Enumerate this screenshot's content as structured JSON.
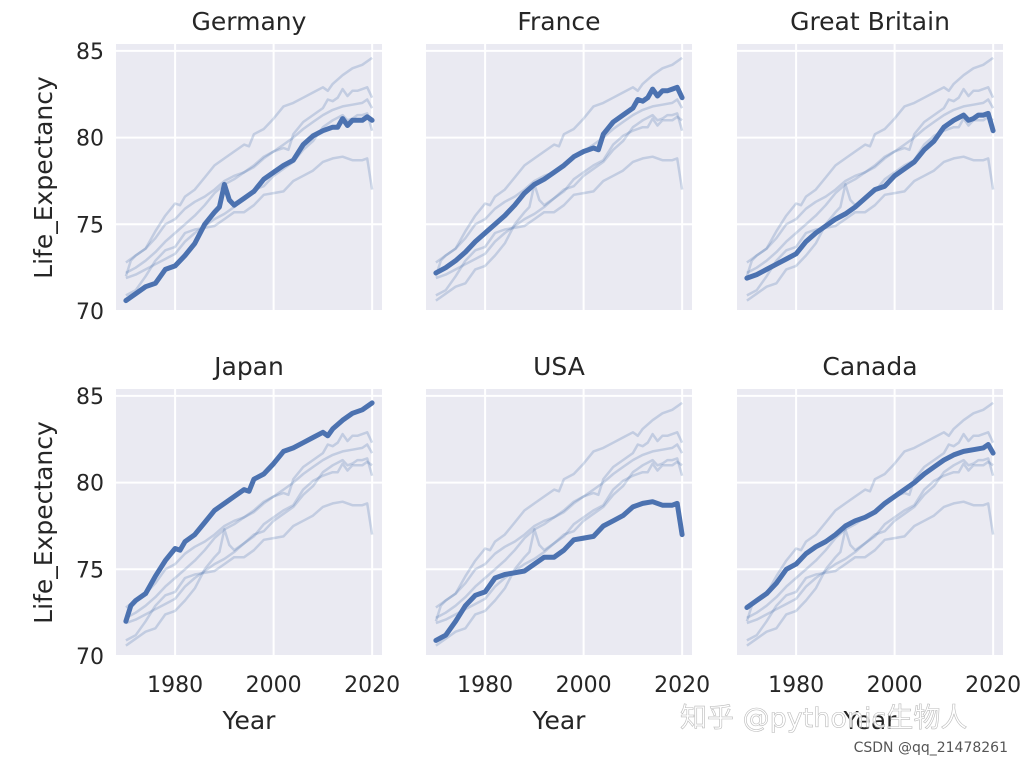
{
  "chart_data": {
    "type": "line",
    "xlabel": "Year",
    "ylabel": "Life_Expectancy",
    "xlim": [
      1968,
      2022
    ],
    "ylim": [
      70,
      85.4
    ],
    "xticks": [
      "1980",
      "2000",
      "2020"
    ],
    "yticks": [
      "70",
      "75",
      "80",
      "85"
    ],
    "grid": true,
    "colors": {
      "highlight": "#4c72b0",
      "background_series": "#4c72b0",
      "panel_bg": "#eaeaf2",
      "grid": "#ffffff"
    },
    "series": [
      {
        "name": "Germany",
        "points": [
          [
            1970,
            70.6
          ],
          [
            1972,
            71.0
          ],
          [
            1974,
            71.4
          ],
          [
            1976,
            71.6
          ],
          [
            1978,
            72.4
          ],
          [
            1980,
            72.6
          ],
          [
            1982,
            73.2
          ],
          [
            1984,
            73.9
          ],
          [
            1986,
            75.0
          ],
          [
            1988,
            75.7
          ],
          [
            1989,
            76.0
          ],
          [
            1990,
            77.3
          ],
          [
            1991,
            76.4
          ],
          [
            1992,
            76.1
          ],
          [
            1994,
            76.5
          ],
          [
            1996,
            76.9
          ],
          [
            1998,
            77.6
          ],
          [
            2000,
            78.0
          ],
          [
            2002,
            78.4
          ],
          [
            2004,
            78.7
          ],
          [
            2006,
            79.6
          ],
          [
            2008,
            80.1
          ],
          [
            2010,
            80.4
          ],
          [
            2012,
            80.6
          ],
          [
            2013,
            80.6
          ],
          [
            2014,
            81.1
          ],
          [
            2015,
            80.7
          ],
          [
            2016,
            81.0
          ],
          [
            2017,
            81.0
          ],
          [
            2018,
            81.0
          ],
          [
            2019,
            81.2
          ],
          [
            2020,
            81.0
          ]
        ]
      },
      {
        "name": "France",
        "points": [
          [
            1970,
            72.2
          ],
          [
            1972,
            72.5
          ],
          [
            1974,
            72.9
          ],
          [
            1976,
            73.4
          ],
          [
            1978,
            74.0
          ],
          [
            1980,
            74.5
          ],
          [
            1982,
            75.0
          ],
          [
            1984,
            75.5
          ],
          [
            1986,
            76.1
          ],
          [
            1988,
            76.8
          ],
          [
            1990,
            77.3
          ],
          [
            1992,
            77.6
          ],
          [
            1994,
            78.0
          ],
          [
            1996,
            78.4
          ],
          [
            1998,
            78.9
          ],
          [
            2000,
            79.2
          ],
          [
            2002,
            79.4
          ],
          [
            2003,
            79.3
          ],
          [
            2004,
            80.2
          ],
          [
            2006,
            80.9
          ],
          [
            2008,
            81.3
          ],
          [
            2010,
            81.7
          ],
          [
            2011,
            82.2
          ],
          [
            2012,
            82.1
          ],
          [
            2013,
            82.3
          ],
          [
            2014,
            82.8
          ],
          [
            2015,
            82.4
          ],
          [
            2016,
            82.7
          ],
          [
            2017,
            82.7
          ],
          [
            2018,
            82.8
          ],
          [
            2019,
            82.9
          ],
          [
            2020,
            82.3
          ]
        ]
      },
      {
        "name": "Great Britain",
        "points": [
          [
            1970,
            71.9
          ],
          [
            1972,
            72.1
          ],
          [
            1974,
            72.4
          ],
          [
            1976,
            72.7
          ],
          [
            1978,
            73.0
          ],
          [
            1980,
            73.3
          ],
          [
            1982,
            74.0
          ],
          [
            1984,
            74.5
          ],
          [
            1986,
            74.9
          ],
          [
            1988,
            75.3
          ],
          [
            1990,
            75.6
          ],
          [
            1992,
            76.0
          ],
          [
            1994,
            76.5
          ],
          [
            1996,
            77.0
          ],
          [
            1998,
            77.2
          ],
          [
            2000,
            77.8
          ],
          [
            2002,
            78.2
          ],
          [
            2004,
            78.6
          ],
          [
            2006,
            79.3
          ],
          [
            2008,
            79.8
          ],
          [
            2010,
            80.6
          ],
          [
            2012,
            81.0
          ],
          [
            2014,
            81.3
          ],
          [
            2015,
            81.0
          ],
          [
            2016,
            81.1
          ],
          [
            2017,
            81.3
          ],
          [
            2018,
            81.3
          ],
          [
            2019,
            81.4
          ],
          [
            2020,
            80.4
          ]
        ]
      },
      {
        "name": "Japan",
        "points": [
          [
            1970,
            72.0
          ],
          [
            1971,
            72.9
          ],
          [
            1972,
            73.2
          ],
          [
            1974,
            73.6
          ],
          [
            1976,
            74.6
          ],
          [
            1978,
            75.5
          ],
          [
            1980,
            76.2
          ],
          [
            1981,
            76.1
          ],
          [
            1982,
            76.6
          ],
          [
            1984,
            77.0
          ],
          [
            1986,
            77.7
          ],
          [
            1988,
            78.4
          ],
          [
            1990,
            78.8
          ],
          [
            1992,
            79.2
          ],
          [
            1994,
            79.6
          ],
          [
            1995,
            79.5
          ],
          [
            1996,
            80.2
          ],
          [
            1998,
            80.5
          ],
          [
            2000,
            81.1
          ],
          [
            2002,
            81.8
          ],
          [
            2004,
            82.0
          ],
          [
            2006,
            82.3
          ],
          [
            2008,
            82.6
          ],
          [
            2010,
            82.9
          ],
          [
            2011,
            82.7
          ],
          [
            2012,
            83.1
          ],
          [
            2014,
            83.6
          ],
          [
            2016,
            84.0
          ],
          [
            2018,
            84.2
          ],
          [
            2020,
            84.6
          ]
        ]
      },
      {
        "name": "USA",
        "points": [
          [
            1970,
            70.9
          ],
          [
            1972,
            71.2
          ],
          [
            1974,
            72.0
          ],
          [
            1976,
            72.9
          ],
          [
            1978,
            73.5
          ],
          [
            1980,
            73.7
          ],
          [
            1982,
            74.5
          ],
          [
            1984,
            74.7
          ],
          [
            1986,
            74.8
          ],
          [
            1988,
            74.9
          ],
          [
            1990,
            75.3
          ],
          [
            1992,
            75.7
          ],
          [
            1994,
            75.7
          ],
          [
            1996,
            76.1
          ],
          [
            1998,
            76.7
          ],
          [
            2000,
            76.8
          ],
          [
            2002,
            76.9
          ],
          [
            2004,
            77.5
          ],
          [
            2006,
            77.8
          ],
          [
            2008,
            78.1
          ],
          [
            2010,
            78.6
          ],
          [
            2012,
            78.8
          ],
          [
            2014,
            78.9
          ],
          [
            2016,
            78.7
          ],
          [
            2018,
            78.7
          ],
          [
            2019,
            78.8
          ],
          [
            2020,
            77.0
          ]
        ]
      },
      {
        "name": "Canada",
        "points": [
          [
            1970,
            72.8
          ],
          [
            1972,
            73.2
          ],
          [
            1974,
            73.6
          ],
          [
            1976,
            74.2
          ],
          [
            1978,
            75.0
          ],
          [
            1980,
            75.3
          ],
          [
            1982,
            75.9
          ],
          [
            1984,
            76.3
          ],
          [
            1986,
            76.6
          ],
          [
            1988,
            77.0
          ],
          [
            1990,
            77.5
          ],
          [
            1992,
            77.8
          ],
          [
            1994,
            78.0
          ],
          [
            1996,
            78.3
          ],
          [
            1998,
            78.8
          ],
          [
            2000,
            79.2
          ],
          [
            2002,
            79.6
          ],
          [
            2004,
            80.0
          ],
          [
            2006,
            80.5
          ],
          [
            2008,
            80.9
          ],
          [
            2010,
            81.3
          ],
          [
            2012,
            81.6
          ],
          [
            2014,
            81.8
          ],
          [
            2016,
            81.9
          ],
          [
            2018,
            82.0
          ],
          [
            2019,
            82.2
          ],
          [
            2020,
            81.7
          ]
        ]
      }
    ]
  },
  "watermark": "知乎 @pythonic生物人",
  "credit": "CSDN @qq_21478261"
}
